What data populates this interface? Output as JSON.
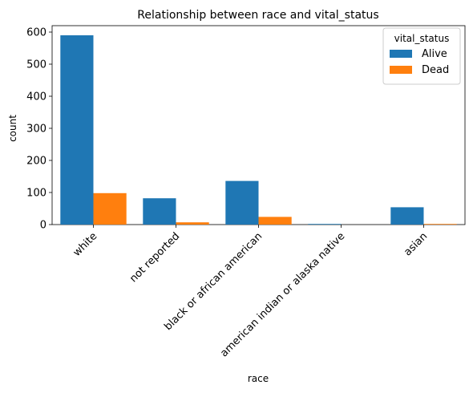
{
  "chart_data": {
    "type": "bar",
    "title": "Relationship between race and vital_status",
    "xlabel": "race",
    "ylabel": "count",
    "categories": [
      "white",
      "not reported",
      "black or african american",
      "american indian or alaska native",
      "asian"
    ],
    "series": [
      {
        "name": "Alive",
        "color": "#1f77b4",
        "values": [
          590,
          82,
          136,
          2,
          54
        ]
      },
      {
        "name": "Dead",
        "color": "#ff7f0e",
        "values": [
          98,
          7,
          24,
          0,
          2
        ]
      }
    ],
    "ylim": [
      0,
      620
    ],
    "yticks": [
      0,
      100,
      200,
      300,
      400,
      500,
      600
    ],
    "grid": false,
    "legend": {
      "title": "vital_status",
      "placement": "top-right"
    }
  }
}
